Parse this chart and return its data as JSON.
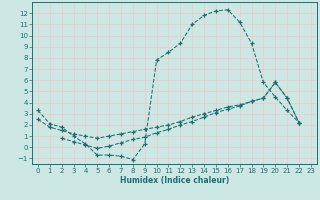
{
  "xlabel": "Humidex (Indice chaleur)",
  "xlim": [
    -0.5,
    23.5
  ],
  "ylim": [
    -1.5,
    13.0
  ],
  "xticks": [
    0,
    1,
    2,
    3,
    4,
    5,
    6,
    7,
    8,
    9,
    10,
    11,
    12,
    13,
    14,
    15,
    16,
    17,
    18,
    19,
    20,
    21,
    22,
    23
  ],
  "yticks": [
    -1,
    0,
    1,
    2,
    3,
    4,
    5,
    6,
    7,
    8,
    9,
    10,
    11,
    12
  ],
  "bg_color": "#cde8e4",
  "grid_color": "#f0c8c8",
  "line_color": "#1a7070",
  "curve1_x": [
    0,
    1,
    2,
    3,
    4,
    5,
    6,
    7,
    8,
    9,
    10,
    11,
    12,
    13,
    14,
    15,
    16,
    17,
    18,
    19,
    20,
    21,
    22
  ],
  "curve1_y": [
    3.3,
    2.1,
    1.8,
    1.0,
    0.3,
    -0.7,
    -0.7,
    -0.8,
    -1.1,
    0.3,
    7.8,
    8.5,
    9.3,
    11.0,
    11.8,
    12.2,
    12.3,
    11.2,
    9.3,
    5.8,
    4.5,
    3.3,
    2.2
  ],
  "curve2_x": [
    0,
    1,
    2,
    3,
    4,
    5,
    6,
    7,
    8,
    9,
    10,
    11,
    12,
    13,
    14,
    15,
    16,
    17,
    18,
    19,
    20,
    21,
    22
  ],
  "curve2_y": [
    2.5,
    1.8,
    1.5,
    1.2,
    1.0,
    0.8,
    1.0,
    1.2,
    1.4,
    1.6,
    1.8,
    2.0,
    2.3,
    2.7,
    3.0,
    3.3,
    3.6,
    3.8,
    4.1,
    4.4,
    5.8,
    4.4,
    2.2
  ],
  "curve3_x": [
    2,
    3,
    4,
    5,
    6,
    7,
    8,
    9,
    10,
    11,
    12,
    13,
    14,
    15,
    16,
    17,
    18,
    19,
    20,
    21,
    22
  ],
  "curve3_y": [
    0.8,
    0.5,
    0.2,
    -0.1,
    0.1,
    0.4,
    0.7,
    0.9,
    1.3,
    1.6,
    2.0,
    2.3,
    2.7,
    3.1,
    3.4,
    3.7,
    4.1,
    4.4,
    5.8,
    4.4,
    2.2
  ]
}
